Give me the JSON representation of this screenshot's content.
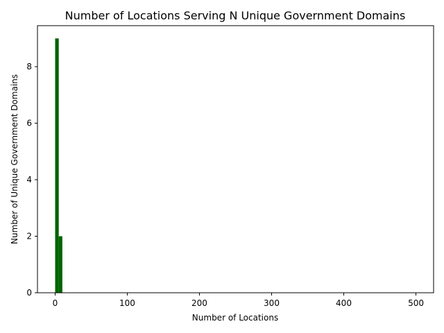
{
  "chart_data": {
    "type": "bar",
    "title": "Number of Locations Serving N Unique Government Domains",
    "xlabel": "Number of Locations",
    "ylabel": "Number of Unique Government Domains",
    "xlim": [
      -24.5,
      524.5
    ],
    "ylim": [
      0,
      9.45
    ],
    "xticks": [
      0,
      100,
      200,
      300,
      400,
      500
    ],
    "yticks": [
      0,
      2,
      4,
      6,
      8
    ],
    "bars": [
      {
        "x0": 0,
        "x1": 5,
        "value": 9
      },
      {
        "x0": 5,
        "x1": 10,
        "value": 2
      }
    ],
    "bar_color": "#006400",
    "grid": false,
    "legend": "none"
  }
}
